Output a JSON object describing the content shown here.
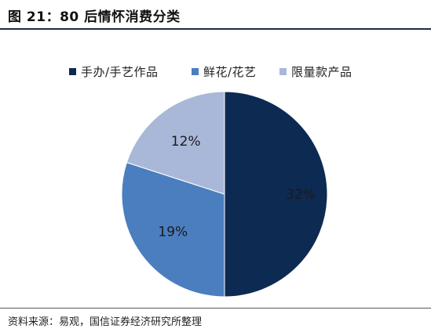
{
  "figure": {
    "title": "图 21：80 后情怀消费分类",
    "source": "资料来源：易观，国信证券经济研究所整理"
  },
  "chart_data": {
    "type": "pie",
    "title": "",
    "series": [
      {
        "name": "手办/手艺作品",
        "label": "32%",
        "value": 50,
        "color": "#0d2a52"
      },
      {
        "name": "鲜花/花艺",
        "label": "19%",
        "value": 30,
        "color": "#4a7ebf"
      },
      {
        "name": "限量款产品",
        "label": "12%",
        "value": 20,
        "color": "#a9b8d8"
      }
    ],
    "legend_position": "top",
    "grid": false
  }
}
